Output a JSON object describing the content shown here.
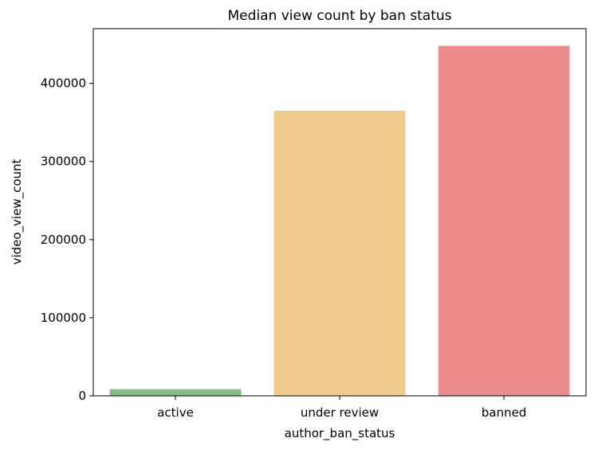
{
  "chart_data": {
    "type": "bar",
    "title": "Median view count by ban status",
    "xlabel": "author_ban_status",
    "ylabel": "video_view_count",
    "categories": [
      "active",
      "under review",
      "banned"
    ],
    "values": [
      8500,
      365000,
      448000
    ],
    "colors": [
      "#80bf80",
      "#efcb8c",
      "#ed8e8e"
    ],
    "ylim": [
      0,
      470000
    ],
    "yticks": [
      0,
      100000,
      200000,
      300000,
      400000
    ],
    "ytick_labels": [
      "0",
      "100000",
      "200000",
      "300000",
      "400000"
    ],
    "grid": false,
    "legend": "none"
  }
}
